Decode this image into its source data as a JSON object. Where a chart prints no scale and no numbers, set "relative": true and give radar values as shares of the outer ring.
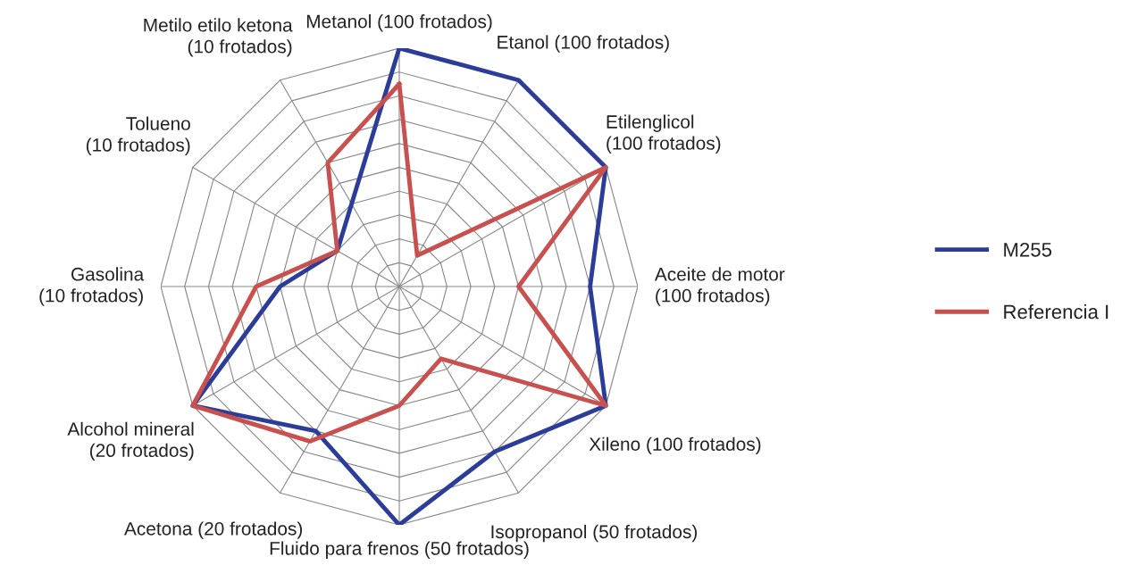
{
  "chart_data": {
    "type": "radar",
    "relative": true,
    "legend": "right",
    "categories": [
      "Metanol (100 frotados)",
      "Etanol (100 frotados)",
      "Etilenglicol\n(100 frotados)",
      "Aceite de motor\n(100 frotados)",
      "Xileno (100 frotados)",
      "Isopropanol (50 frotados)",
      "Fluido para frenos (50 frotados)",
      "Acetona (20 frotados)",
      "Alcohol mineral\n(20 frotados)",
      "Gasolina\n(10 frotados)",
      "Tolueno\n(10 frotados)",
      "Metilo etilo ketona\n(10 frotados)"
    ],
    "series": [
      {
        "name": "M255",
        "color": "#2b3d98",
        "values": [
          1.0,
          1.0,
          1.0,
          0.8,
          1.0,
          0.8,
          1.0,
          0.7,
          1.0,
          0.5,
          0.3,
          0.4
        ]
      },
      {
        "name": "Referencia I",
        "color": "#c8504f",
        "values": [
          0.85,
          0.15,
          1.0,
          0.5,
          1.0,
          0.35,
          0.5,
          0.75,
          1.0,
          0.6,
          0.3,
          0.6
        ]
      }
    ]
  }
}
